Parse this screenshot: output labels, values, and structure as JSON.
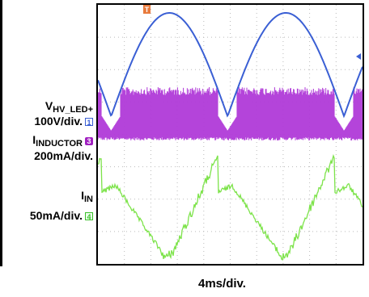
{
  "chart_data": {
    "type": "line",
    "title": "",
    "xlabel": "4ms/div.",
    "x_divisions": 10,
    "y_divisions": 8,
    "grid": true,
    "trigger_marker": "T",
    "series": [
      {
        "name": "VHV_LED+",
        "name_main": "V",
        "name_sub": "HV_LED+",
        "scale": "100V/div.",
        "channel": "1",
        "color": "#3a5fd4",
        "description": "rectified sine, period ~4.4 div",
        "waveform": "rectified-sine",
        "period_div": 4.4,
        "peak_div": 3.8,
        "valley_div": 0.3
      },
      {
        "name": "IINDUCTOR",
        "name_main": "I",
        "name_sub": "INDUCTOR",
        "scale": "200mA/div.",
        "channel": "3",
        "color": "#b03ad8",
        "waveform": "switching-envelope"
      },
      {
        "name": "IIN",
        "name_main": "I",
        "name_sub": "IN",
        "scale": "50mA/div.",
        "channel": "4",
        "color": "#7de34a",
        "waveform": "input-current"
      }
    ]
  }
}
